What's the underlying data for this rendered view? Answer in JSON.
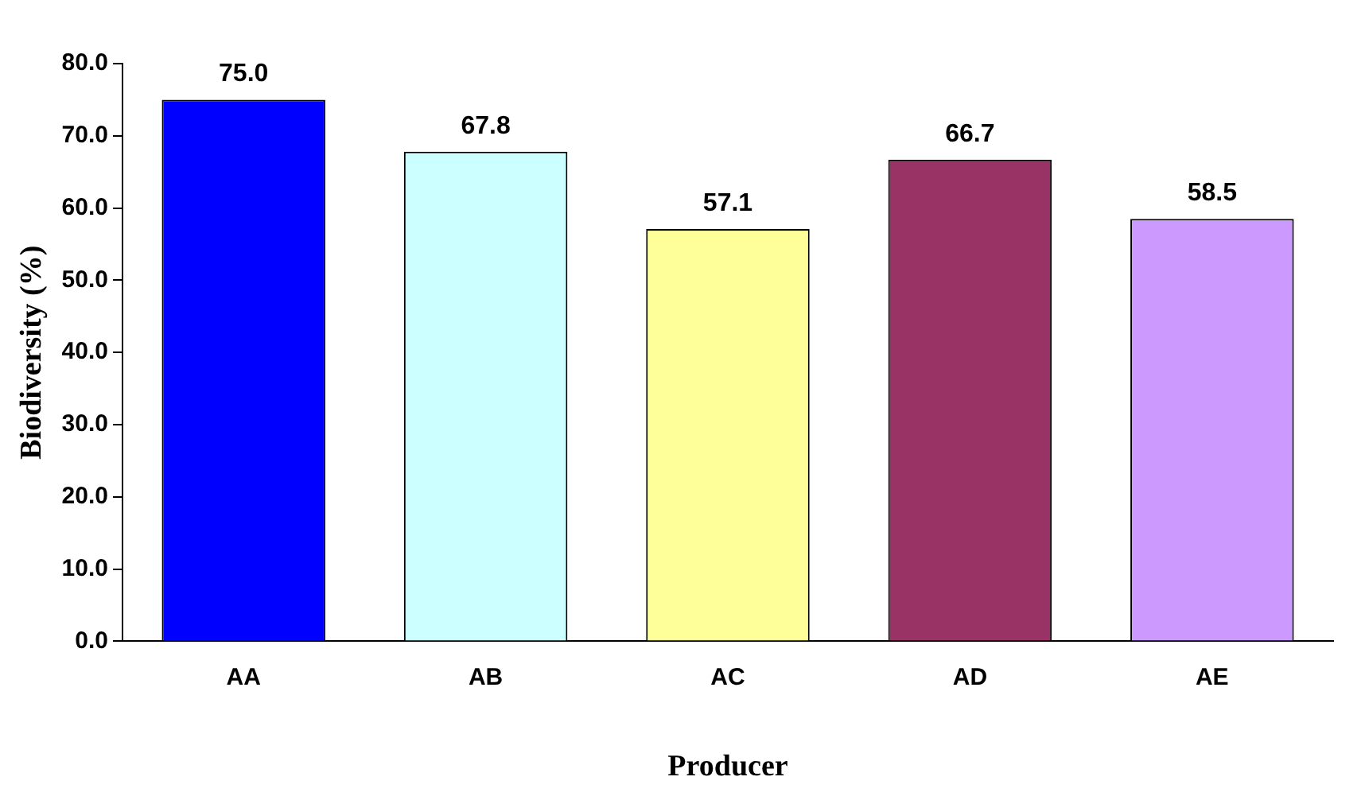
{
  "chart_data": {
    "type": "bar",
    "xlabel": "Producer",
    "ylabel": "Biodiversity (%)",
    "categories": [
      "AA",
      "AB",
      "AC",
      "AD",
      "AE"
    ],
    "values": [
      75.0,
      67.8,
      57.1,
      66.7,
      58.5
    ],
    "colors": [
      "#0000ff",
      "#ccffff",
      "#ffff99",
      "#993366",
      "#cc99ff"
    ],
    "ylim": [
      0,
      80
    ],
    "yticks": [
      {
        "value": 0,
        "label": "0.0"
      },
      {
        "value": 10,
        "label": "10.0"
      },
      {
        "value": 20,
        "label": "20.0"
      },
      {
        "value": 30,
        "label": "30.0"
      },
      {
        "value": 40,
        "label": "40.0"
      },
      {
        "value": 50,
        "label": "50.0"
      },
      {
        "value": 60,
        "label": "60.0"
      },
      {
        "value": 70,
        "label": "70.0"
      },
      {
        "value": 80,
        "label": "80.0"
      }
    ],
    "value_labels": [
      "75.0",
      "67.8",
      "57.1",
      "66.7",
      "58.5"
    ],
    "grid": false,
    "legend": false
  }
}
